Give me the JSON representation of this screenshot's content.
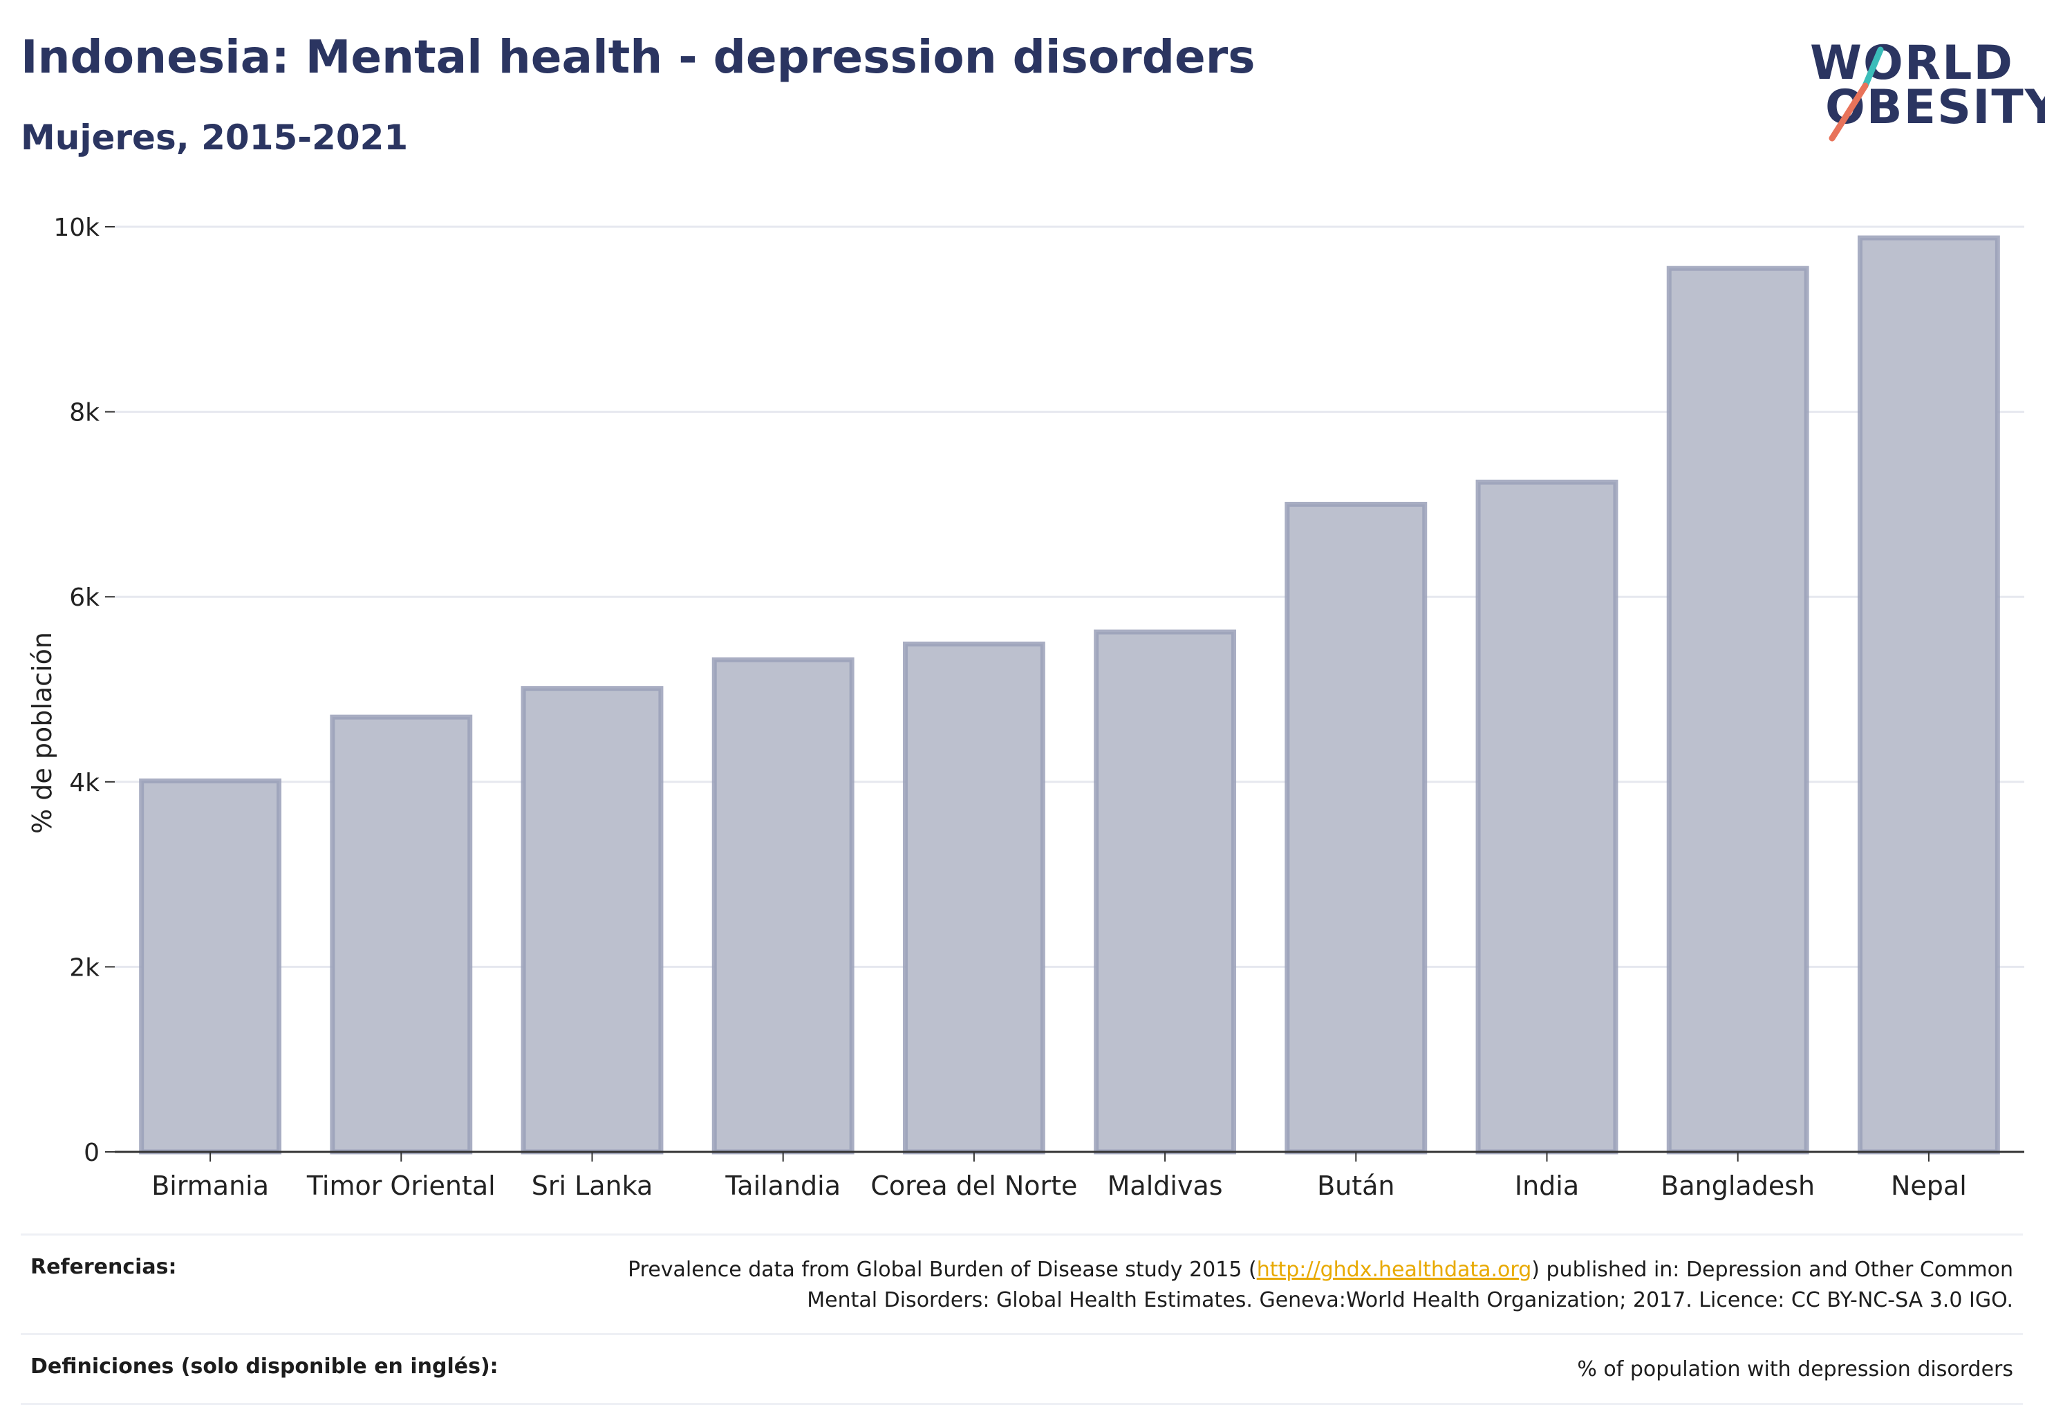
{
  "header": {
    "title": "Indonesia: Mental health - depression disorders",
    "subtitle": "Mujeres, 2015-2021"
  },
  "logo": {
    "line1": "WORLD",
    "line2": "OBESITY",
    "stroke_colors": [
      "#3bbdb9",
      "#e8735a"
    ]
  },
  "chart_data": {
    "type": "bar",
    "title": "Indonesia: Mental health - depression disorders",
    "subtitle": "Mujeres, 2015-2021",
    "ylabel": "% de población",
    "xlabel": "",
    "categories": [
      "Birmania",
      "Timor Oriental",
      "Sri Lanka",
      "Tailandia",
      "Corea del Norte",
      "Maldivas",
      "Bután",
      "India",
      "Bangladesh",
      "Nepal"
    ],
    "values": [
      4010,
      4700,
      5010,
      5320,
      5490,
      5620,
      7000,
      7240,
      9550,
      9880
    ],
    "ylim": [
      0,
      10000
    ],
    "yticks": [
      {
        "value": 0,
        "label": "0"
      },
      {
        "value": 2000,
        "label": "2k"
      },
      {
        "value": 4000,
        "label": "4k"
      },
      {
        "value": 6000,
        "label": "6k"
      },
      {
        "value": 8000,
        "label": "8k"
      },
      {
        "value": 10000,
        "label": "10k"
      }
    ],
    "grid": true,
    "bar_fill": "#bcc0ce",
    "bar_stroke": "#9aa0b8",
    "grid_color": "#e6e8ef",
    "axis_color": "#333333"
  },
  "footer": {
    "references_label": "Referencias:",
    "references_pre": "Prevalence data from Global Burden of Disease study 2015 (",
    "references_link": "http://ghdx.healthdata.org",
    "references_post": ") published in: Depression and Other Common Mental Disorders: Global Health Estimates. Geneva:World Health Organization; 2017. Licence: CC BY-NC-SA 3.0 IGO.",
    "definitions_label": "Definiciones (solo disponible en inglés):",
    "definitions_text": "% of population with depression disorders"
  }
}
